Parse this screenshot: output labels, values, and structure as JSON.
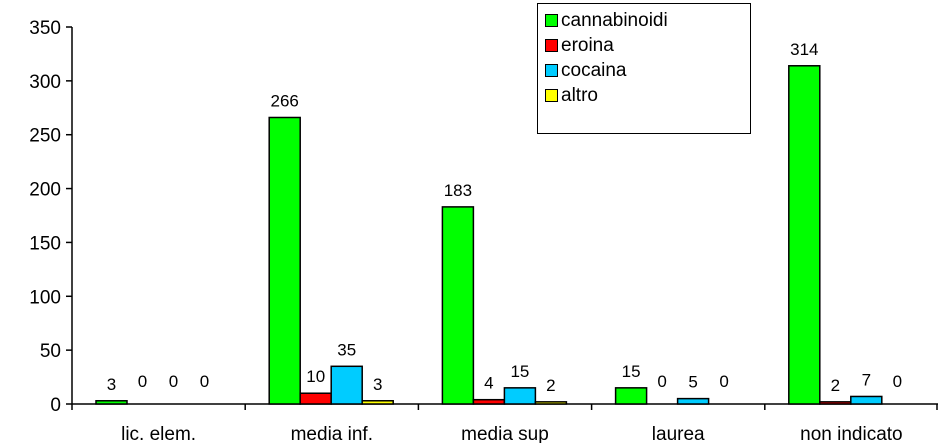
{
  "chart_data": {
    "type": "bar",
    "categories": [
      "lic. elem.",
      "media inf.",
      "media sup",
      "laurea",
      "non indicato"
    ],
    "series": [
      {
        "name": "cannabinoidi",
        "color": "#00ff00",
        "values": [
          3,
          266,
          183,
          15,
          314
        ]
      },
      {
        "name": "eroina",
        "color": "#ff0000",
        "values": [
          0,
          10,
          4,
          0,
          2
        ]
      },
      {
        "name": "cocaina",
        "color": "#00ccff",
        "values": [
          0,
          35,
          15,
          5,
          7
        ]
      },
      {
        "name": "altro",
        "color": "#ffff00",
        "values": [
          0,
          3,
          2,
          0,
          0
        ]
      }
    ],
    "data_labels": [
      [
        "3",
        "266",
        "183",
        "15",
        "314"
      ],
      [
        "0",
        "10",
        "4",
        "0",
        "2"
      ],
      [
        "0",
        "35",
        "15",
        "5",
        "7"
      ],
      [
        "0",
        "3",
        "2",
        "0",
        "0"
      ]
    ],
    "yticks": [
      0,
      50,
      100,
      150,
      200,
      250,
      300,
      350
    ],
    "ylim": [
      0,
      350
    ],
    "grid": false,
    "legend_position": "top-right"
  }
}
